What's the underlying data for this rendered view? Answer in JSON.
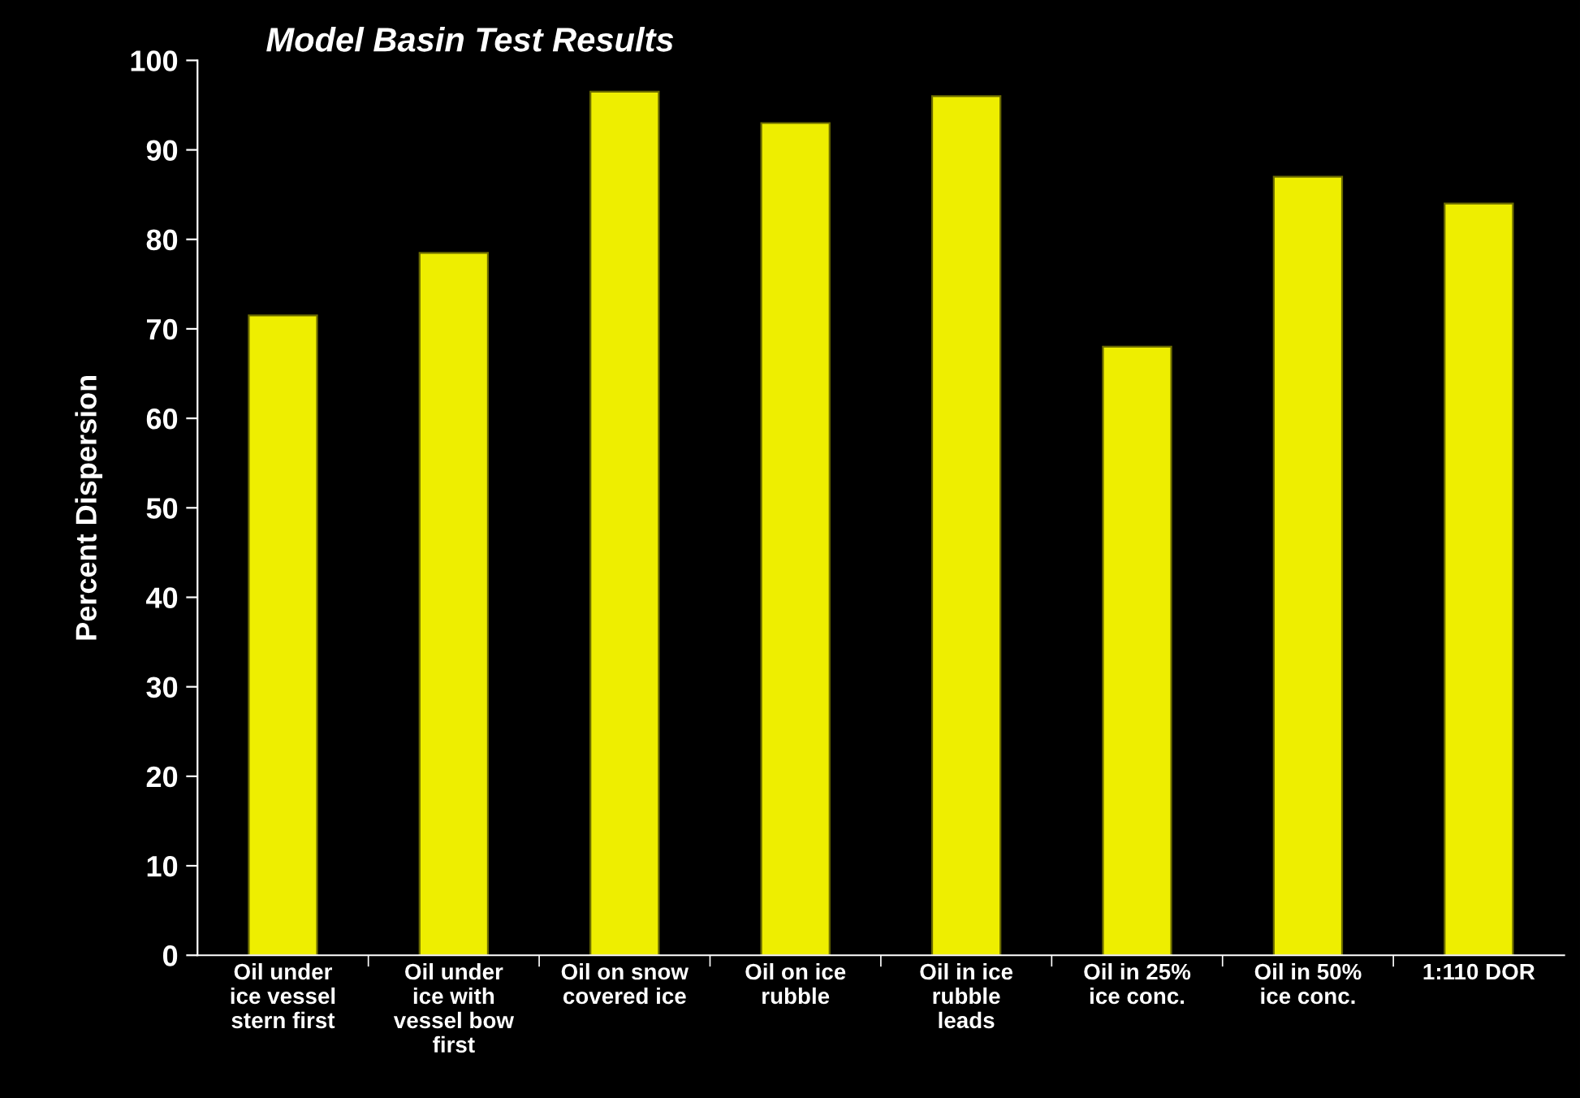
{
  "chart_data": {
    "type": "bar",
    "title": "Model Basin Test Results",
    "ylabel": "Percent Dispersion",
    "categories": [
      "Oil under ice vessel stern first",
      "Oil under ice with vessel bow first",
      "Oil on snow covered ice",
      "Oil on ice rubble",
      "Oil in ice rubble leads",
      "Oil in 25% ice conc.",
      "Oil in 50% ice conc.",
      "1:110 DOR"
    ],
    "values": [
      71.5,
      78.5,
      96.5,
      93,
      96,
      68,
      87,
      84
    ],
    "color": "#eeee00",
    "ylim": [
      0,
      100
    ],
    "yticks": [
      0,
      10,
      20,
      30,
      40,
      50,
      60,
      70,
      80,
      90,
      100
    ],
    "grid": false,
    "legend": false
  }
}
